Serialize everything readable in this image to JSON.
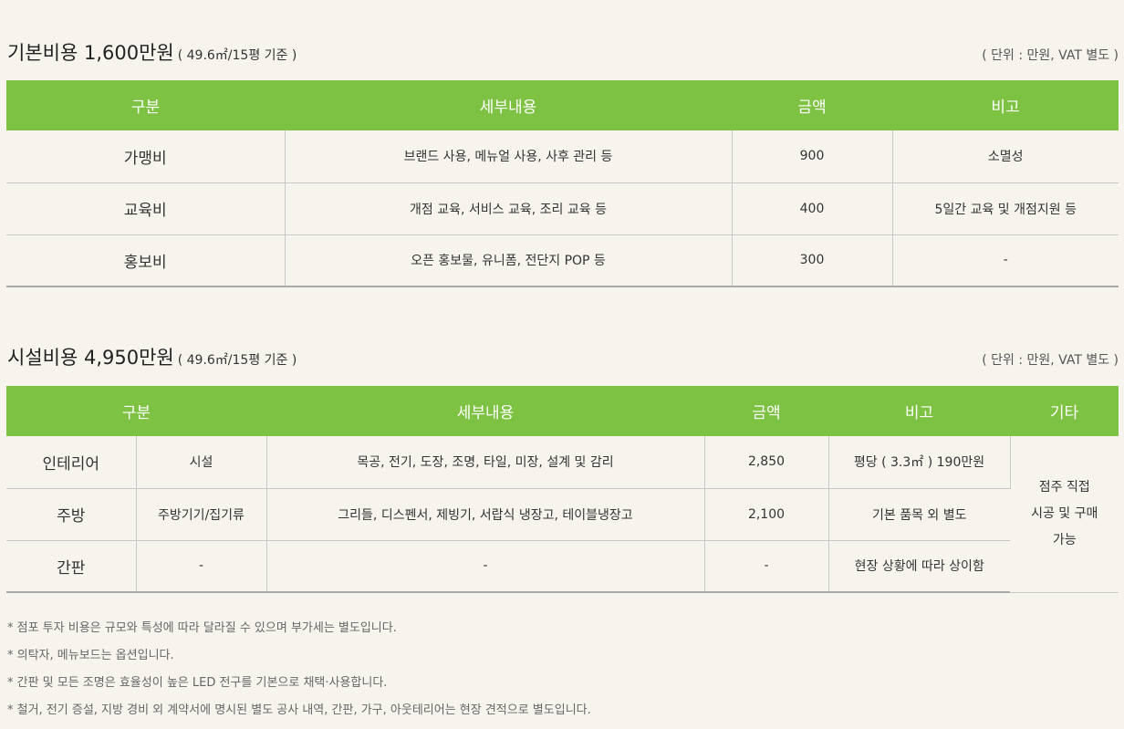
{
  "basic": {
    "title": "기본비용 1,600만원",
    "subtitle": "( 49.6㎡/15평 기준 )",
    "unit_note": "( 단위 : 만원, VAT 별도 )",
    "headers": [
      "구분",
      "세부내용",
      "금액",
      "비고"
    ],
    "rows": [
      {
        "category": "가맹비",
        "detail": "브랜드 사용, 메뉴얼 사용, 사후 관리 등",
        "amount": "900",
        "note": "소멸성"
      },
      {
        "category": "교육비",
        "detail": "개점 교육, 서비스 교육, 조리 교육 등",
        "amount": "400",
        "note": "5일간 교육 및 개점지원 등"
      },
      {
        "category": "홍보비",
        "detail": "오픈 홍보물, 유니폼, 전단지 POP 등",
        "amount": "300",
        "note": "-"
      }
    ]
  },
  "facility": {
    "title": "시설비용 4,950만원",
    "subtitle": "( 49.6㎡/15평 기준 )",
    "unit_note": "( 단위 : 만원, VAT 별도 )",
    "headers": [
      "구분",
      "세부내용",
      "금액",
      "비고",
      "기타"
    ],
    "rows": [
      {
        "category": "인테리어",
        "sub": "시설",
        "detail": "목공, 전기, 도장, 조명, 타일, 미장, 설계 및 감리",
        "amount": "2,850",
        "note": "평당 ( 3.3㎡ ) 190만원"
      },
      {
        "category": "주방",
        "sub": "주방기기/집기류",
        "detail": "그리들, 디스펜서, 제빙기, 서랍식 냉장고, 테이블냉장고",
        "amount": "2,100",
        "note": "기본 품목 외 별도"
      },
      {
        "category": "간판",
        "sub": "-",
        "detail": "-",
        "amount": "-",
        "note": "현장 상황에 따라 상이함"
      }
    ],
    "etc_lines": [
      "점주 직접",
      "시공 및 구매",
      "가능"
    ]
  },
  "footnotes": [
    "* 점포 투자 비용은 규모와 특성에 따라 달라질 수 있으며 부가세는 별도입니다.",
    "* 의탁자, 메뉴보드는 옵션입니다.",
    "* 간판 및 모든 조명은 효율성이 높은 LED 전구를 기본으로 채택·사용합니다.",
    "* 철거, 전기 증설, 지방 경비 외 계약서에 명시된 별도 공사 내역, 간판, 가구, 아웃테리어는 현장 견적으로 별도입니다."
  ]
}
